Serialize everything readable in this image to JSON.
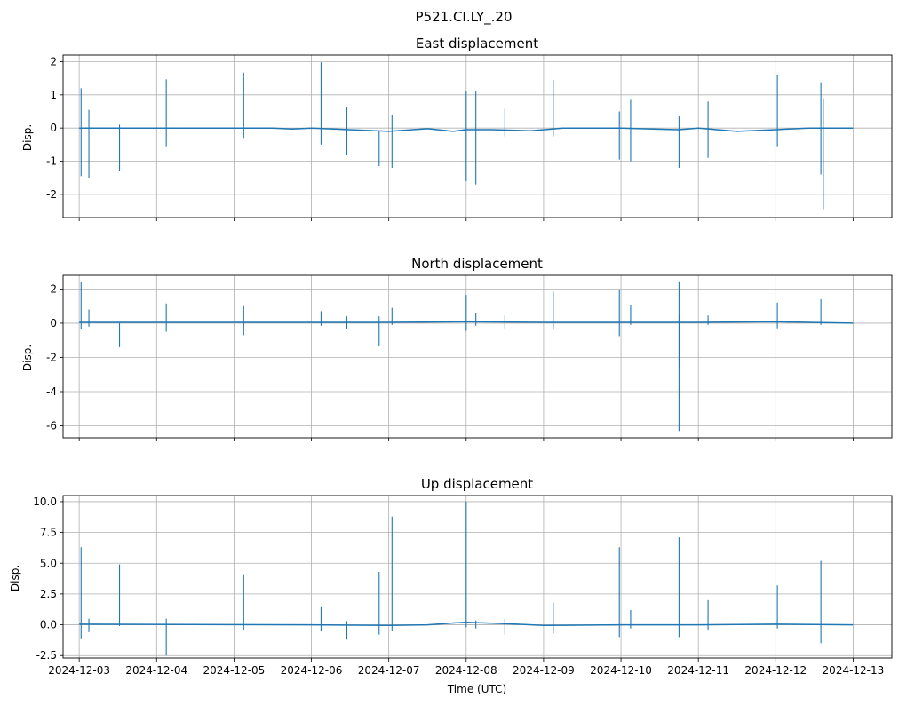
{
  "figure": {
    "suptitle": "P521.CI.LY_.20",
    "xlabel": "Time (UTC)",
    "x_ticks": [
      "2024-12-03",
      "2024-12-04",
      "2024-12-05",
      "2024-12-06",
      "2024-12-07",
      "2024-12-08",
      "2024-12-09",
      "2024-12-10",
      "2024-12-11",
      "2024-12-12",
      "2024-12-13"
    ],
    "series_color": "#1f77b4",
    "grid_color": "#b0b0b0"
  },
  "chart_data": [
    {
      "type": "line",
      "title": "East displacement",
      "ylabel": "Disp.",
      "xlim": [
        "2024-12-02T19:00",
        "2024-12-13T12:00"
      ],
      "ylim": [
        -2.7,
        2.2
      ],
      "yticks": [
        -2,
        -1,
        0,
        1,
        2
      ],
      "grid": true,
      "series": [
        {
          "baseline": [
            [
              "2024-12-03T00:00",
              0
            ],
            [
              "2024-12-05T12:00",
              0
            ],
            [
              "2024-12-05T18:00",
              -0.03
            ],
            [
              "2024-12-06T00:00",
              0
            ],
            [
              "2024-12-07T00:00",
              -0.1
            ],
            [
              "2024-12-07T12:00",
              -0.02
            ],
            [
              "2024-12-07T20:00",
              -0.1
            ],
            [
              "2024-12-08T00:00",
              -0.05
            ],
            [
              "2024-12-08T08:00",
              -0.05
            ],
            [
              "2024-12-08T20:00",
              -0.08
            ],
            [
              "2024-12-09T06:00",
              0
            ],
            [
              "2024-12-10T00:00",
              0
            ],
            [
              "2024-12-10T18:00",
              -0.05
            ],
            [
              "2024-12-11T00:00",
              0
            ],
            [
              "2024-12-11T12:00",
              -0.1
            ],
            [
              "2024-12-12T00:00",
              -0.05
            ],
            [
              "2024-12-12T10:00",
              0
            ],
            [
              "2024-12-13T00:00",
              0
            ]
          ],
          "spikes": [
            [
              "2024-12-03T00:35",
              1.2,
              -1.45
            ],
            [
              "2024-12-03T03:00",
              0.55,
              -1.5
            ],
            [
              "2024-12-03T12:30",
              0.1,
              -1.3
            ],
            [
              "2024-12-04T03:00",
              1.47,
              -0.55
            ],
            [
              "2024-12-05T03:00",
              1.67,
              -0.3
            ],
            [
              "2024-12-06T03:00",
              1.98,
              -0.5
            ],
            [
              "2024-12-06T11:00",
              0.63,
              -0.8
            ],
            [
              "2024-12-06T21:00",
              -0.1,
              -1.15
            ],
            [
              "2024-12-07T01:00",
              0.4,
              -1.2
            ],
            [
              "2024-12-08T00:00",
              1.1,
              -1.6
            ],
            [
              "2024-12-08T03:00",
              1.12,
              -1.7
            ],
            [
              "2024-12-08T12:00",
              0.58,
              -0.25
            ],
            [
              "2024-12-09T03:00",
              1.45,
              -0.25
            ],
            [
              "2024-12-09T23:30",
              0.5,
              -0.95
            ],
            [
              "2024-12-10T03:00",
              0.85,
              -1.0
            ],
            [
              "2024-12-10T18:00",
              0.35,
              -1.2
            ],
            [
              "2024-12-11T03:00",
              0.8,
              -0.9
            ],
            [
              "2024-12-12T00:30",
              1.6,
              -0.55
            ],
            [
              "2024-12-12T14:00",
              1.38,
              -1.4
            ],
            [
              "2024-12-12T14:45",
              0.9,
              -2.45
            ]
          ]
        }
      ]
    },
    {
      "type": "line",
      "title": "North displacement",
      "ylabel": "Disp.",
      "xlim": [
        "2024-12-02T19:00",
        "2024-12-13T12:00"
      ],
      "ylim": [
        -6.7,
        2.8
      ],
      "yticks": [
        -6,
        -4,
        -2,
        0,
        2
      ],
      "grid": true,
      "series": [
        {
          "baseline": [
            [
              "2024-12-03T00:00",
              0.05
            ],
            [
              "2024-12-07T00:00",
              0.05
            ],
            [
              "2024-12-08T00:00",
              0.08
            ],
            [
              "2024-12-09T00:00",
              0.05
            ],
            [
              "2024-12-10T00:00",
              0.05
            ],
            [
              "2024-12-11T00:00",
              0.05
            ],
            [
              "2024-12-12T00:00",
              0.08
            ],
            [
              "2024-12-13T00:00",
              0.0
            ]
          ],
          "spikes": [
            [
              "2024-12-03T00:35",
              2.4,
              -0.35
            ],
            [
              "2024-12-03T03:00",
              0.8,
              -0.2
            ],
            [
              "2024-12-03T12:30",
              0.0,
              -1.4
            ],
            [
              "2024-12-04T03:00",
              1.15,
              -0.5
            ],
            [
              "2024-12-05T03:00",
              1.0,
              -0.7
            ],
            [
              "2024-12-06T03:00",
              0.7,
              -0.15
            ],
            [
              "2024-12-06T11:00",
              0.4,
              -0.35
            ],
            [
              "2024-12-06T21:00",
              0.4,
              -1.35
            ],
            [
              "2024-12-07T01:00",
              0.9,
              -0.1
            ],
            [
              "2024-12-08T00:00",
              1.65,
              -0.45
            ],
            [
              "2024-12-08T03:00",
              0.6,
              -0.15
            ],
            [
              "2024-12-08T12:00",
              0.45,
              -0.3
            ],
            [
              "2024-12-09T03:00",
              1.85,
              -0.35
            ],
            [
              "2024-12-09T23:30",
              1.95,
              -0.75
            ],
            [
              "2024-12-10T03:00",
              1.05,
              -0.1
            ],
            [
              "2024-12-10T18:00",
              2.45,
              -6.3
            ],
            [
              "2024-12-10T18:10",
              0.5,
              -2.6
            ],
            [
              "2024-12-11T03:00",
              0.45,
              -0.1
            ],
            [
              "2024-12-12T00:30",
              1.2,
              -0.3
            ],
            [
              "2024-12-12T14:00",
              1.4,
              -0.1
            ]
          ]
        }
      ]
    },
    {
      "type": "line",
      "title": "Up displacement",
      "ylabel": "Disp.",
      "xlim": [
        "2024-12-02T19:00",
        "2024-12-13T12:00"
      ],
      "ylim": [
        -2.7,
        10.5
      ],
      "yticks": [
        -2.5,
        0.0,
        2.5,
        5.0,
        7.5,
        10.0
      ],
      "grid": true,
      "series": [
        {
          "baseline": [
            [
              "2024-12-03T00:00",
              0.05
            ],
            [
              "2024-12-06T00:00",
              0
            ],
            [
              "2024-12-07T00:00",
              -0.05
            ],
            [
              "2024-12-07T12:00",
              0
            ],
            [
              "2024-12-07T20:00",
              0.15
            ],
            [
              "2024-12-08T00:00",
              0.2
            ],
            [
              "2024-12-08T12:00",
              0.1
            ],
            [
              "2024-12-09T00:00",
              -0.05
            ],
            [
              "2024-12-10T00:00",
              0
            ],
            [
              "2024-12-11T00:00",
              0
            ],
            [
              "2024-12-12T00:00",
              0.05
            ],
            [
              "2024-12-13T00:00",
              0.0
            ]
          ],
          "spikes": [
            [
              "2024-12-03T00:35",
              6.3,
              -1.1
            ],
            [
              "2024-12-03T03:00",
              0.5,
              -0.6
            ],
            [
              "2024-12-03T12:30",
              4.9,
              -0.1
            ],
            [
              "2024-12-04T03:00",
              0.5,
              -2.5
            ],
            [
              "2024-12-05T03:00",
              4.1,
              -0.4
            ],
            [
              "2024-12-06T03:00",
              1.5,
              -0.5
            ],
            [
              "2024-12-06T11:00",
              0.3,
              -1.2
            ],
            [
              "2024-12-06T21:00",
              4.3,
              -0.8
            ],
            [
              "2024-12-07T01:00",
              8.8,
              -0.5
            ],
            [
              "2024-12-08T00:00",
              10.0,
              -0.2
            ],
            [
              "2024-12-08T03:00",
              0.35,
              -0.3
            ],
            [
              "2024-12-08T12:00",
              0.5,
              -0.8
            ],
            [
              "2024-12-09T03:00",
              1.8,
              -0.7
            ],
            [
              "2024-12-09T23:30",
              6.3,
              -1.0
            ],
            [
              "2024-12-10T03:00",
              1.2,
              -0.3
            ],
            [
              "2024-12-10T18:00",
              7.1,
              -1.0
            ],
            [
              "2024-12-11T03:00",
              2.0,
              -0.4
            ],
            [
              "2024-12-12T00:30",
              3.2,
              -0.3
            ],
            [
              "2024-12-12T14:00",
              5.2,
              -1.5
            ]
          ]
        }
      ]
    }
  ]
}
